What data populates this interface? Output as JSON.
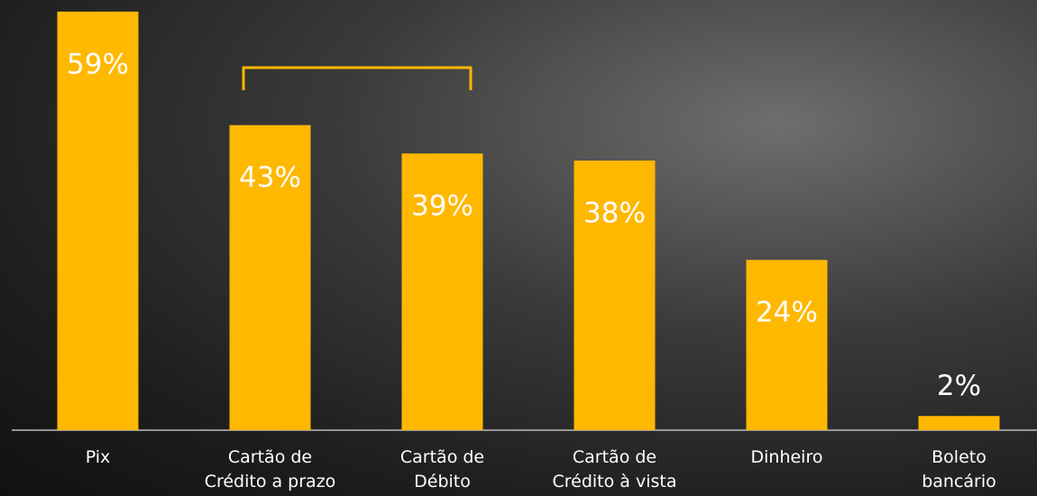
{
  "chart_data": {
    "type": "bar",
    "categories": [
      "Pix",
      "Cartão de\nCrédito a prazo",
      "Cartão de\nDébito",
      "Cartão de\nCrédito à vista",
      "Dinheiro",
      "Boleto\nbancário"
    ],
    "values": [
      59,
      43,
      39,
      38,
      24,
      2
    ],
    "value_labels": [
      "59%",
      "43%",
      "39%",
      "38%",
      "24%",
      "2%"
    ],
    "color": "#ffb800",
    "ylim": [
      0,
      60
    ]
  }
}
